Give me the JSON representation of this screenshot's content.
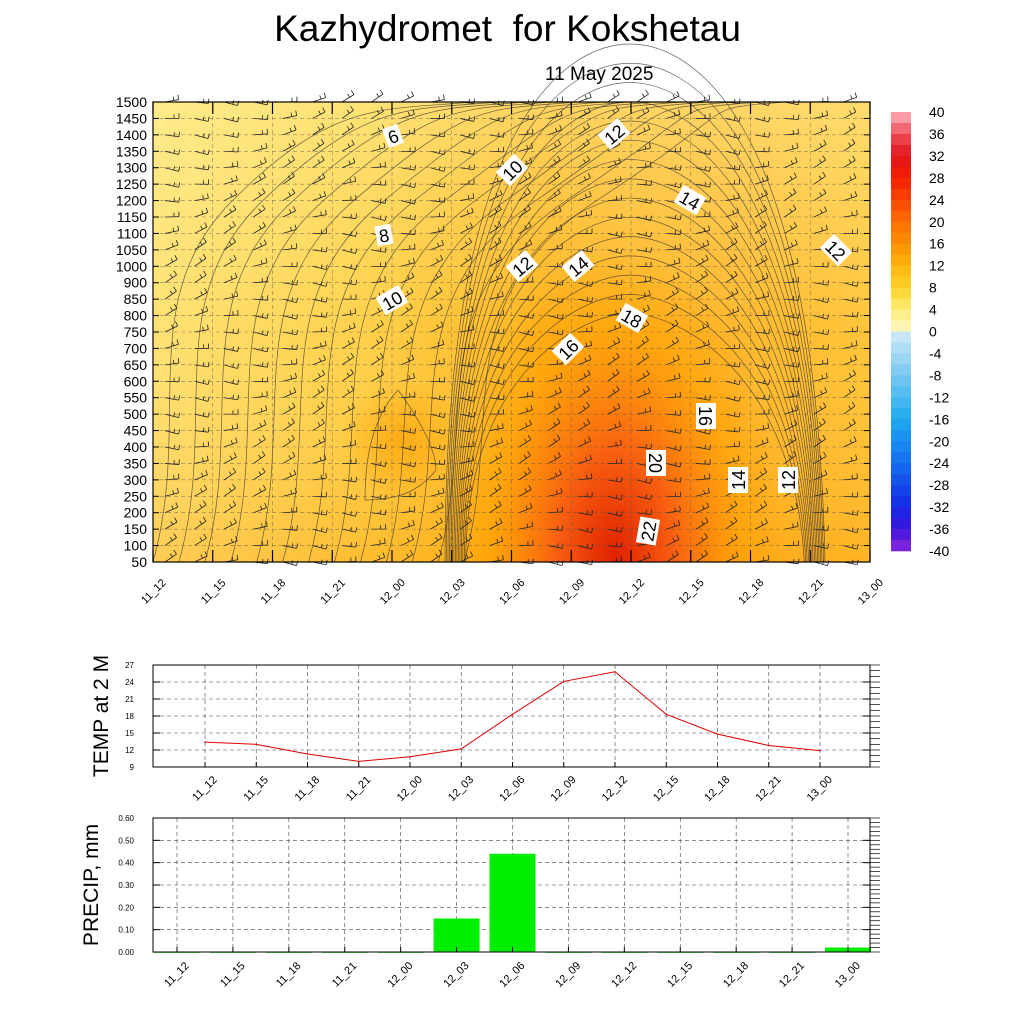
{
  "title": "Kazhydromet  for Kokshetau",
  "subtitle": "11 May 2025",
  "chart_data": [
    {
      "type": "heatmap",
      "y_ticks": [
        "1500",
        "1450",
        "1400",
        "1350",
        "1300",
        "1250",
        "1200",
        "1150",
        "1100",
        "1050",
        "1000",
        "900",
        "850",
        "800",
        "750",
        "700",
        "650",
        "600",
        "550",
        "500",
        "450",
        "400",
        "350",
        "300",
        "250",
        "200",
        "150",
        "100",
        "50"
      ],
      "x_ticks": [
        "11_12",
        "11_15",
        "11_18",
        "11_21",
        "12_00",
        "12_03",
        "12_06",
        "12_09",
        "12_12",
        "12_15",
        "12_18",
        "12_21",
        "13_00"
      ],
      "grid": true,
      "legend": "right",
      "colorbar_ticks": [
        "40",
        "36",
        "32",
        "28",
        "24",
        "20",
        "16",
        "12",
        "8",
        "4",
        "0",
        "-4",
        "-8",
        "-12",
        "-16",
        "-20",
        "-24",
        "-28",
        "-32",
        "-36",
        "-40"
      ],
      "colorbar_range": [
        -40,
        40
      ],
      "contour_labels": [
        "6",
        "12",
        "10",
        "14",
        "8",
        "12",
        "12",
        "14",
        "10",
        "18",
        "16",
        "16",
        "20",
        "14",
        "12",
        "22"
      ],
      "color_positive": "#ffb000",
      "color_max": "#e02000",
      "color_negative": "#4080ff"
    },
    {
      "type": "line",
      "ylabel": "TEMP at 2 M",
      "x": [
        "11_12",
        "11_15",
        "11_18",
        "11_21",
        "12_00",
        "12_03",
        "12_06",
        "12_09",
        "12_12",
        "12_15",
        "12_18",
        "12_21",
        "13_00"
      ],
      "values": [
        13.4,
        13.0,
        11.3,
        10.0,
        10.8,
        12.2,
        18.3,
        24.1,
        25.8,
        18.3,
        14.8,
        12.8,
        11.9
      ],
      "ylim": [
        9,
        27
      ],
      "y_ticks": [
        "27",
        "24",
        "21",
        "18",
        "15",
        "12",
        "9"
      ],
      "grid": true,
      "color": "#e00000"
    },
    {
      "type": "bar",
      "ylabel": "PRECIP, mm",
      "categories": [
        "11_12",
        "11_15",
        "11_18",
        "11_21",
        "12_00",
        "12_03",
        "12_06",
        "12_09",
        "12_12",
        "12_15",
        "12_18",
        "12_21",
        "13_00"
      ],
      "values": [
        0,
        0,
        0,
        0,
        0,
        0.15,
        0.44,
        0,
        0,
        0,
        0,
        0,
        0.02
      ],
      "ylim": [
        0,
        0.6
      ],
      "y_ticks": [
        "0.60",
        "0.50",
        "0.40",
        "0.30",
        "0.20",
        "0.10",
        "0.00"
      ],
      "grid": true,
      "color": "#00ee00"
    }
  ]
}
